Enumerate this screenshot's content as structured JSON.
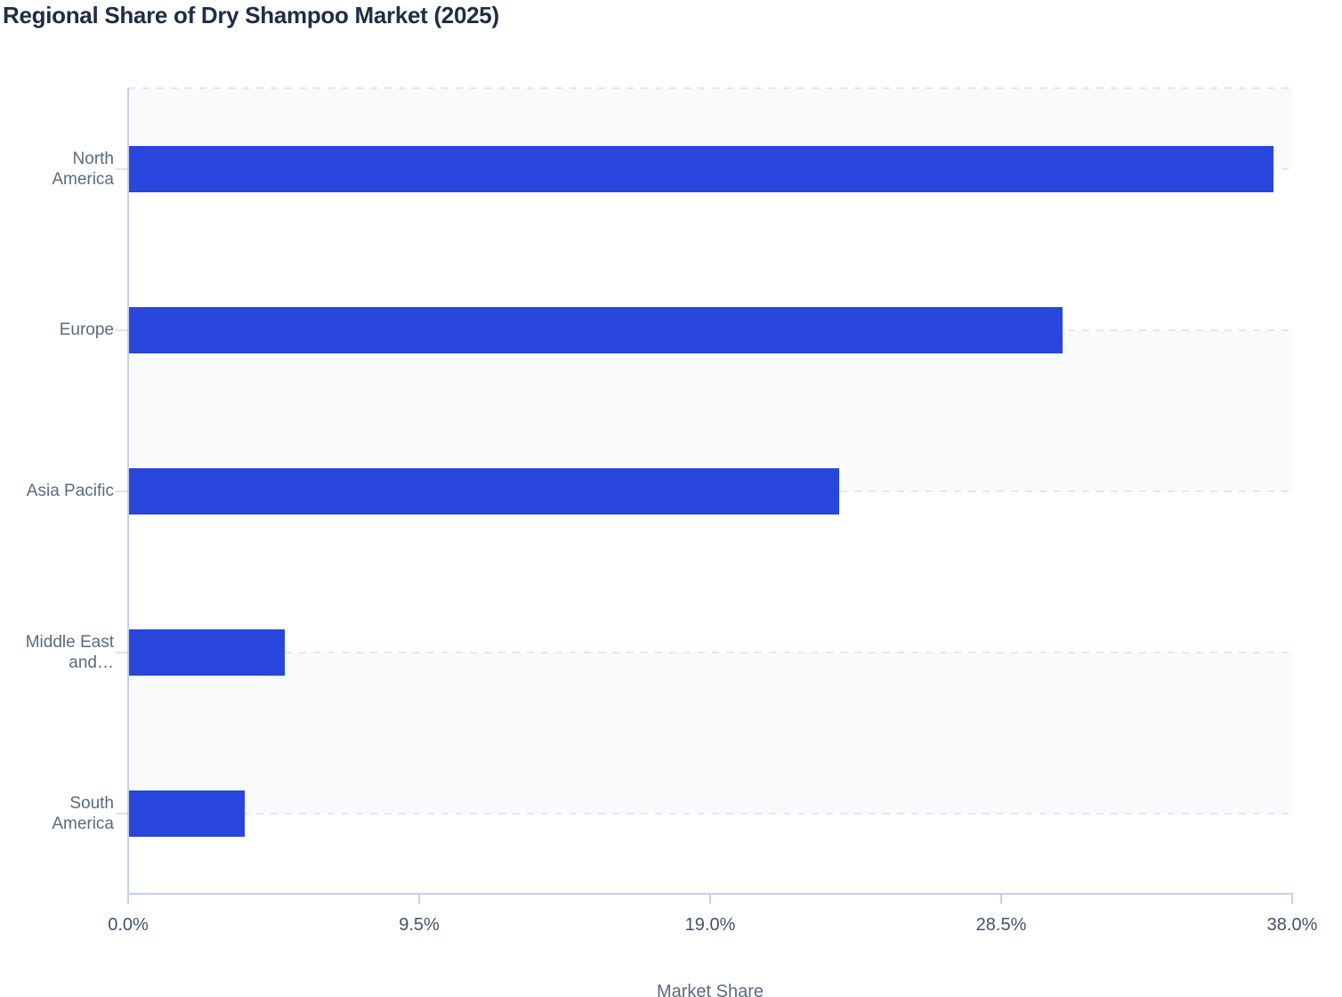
{
  "page": {
    "title": "Regional Share of Dry Shampoo Market (2025)"
  },
  "chart_data": {
    "type": "bar",
    "orientation": "horizontal",
    "title": "Regional Share of Dry Shampoo Market (2025)",
    "categories": [
      "North America",
      "Europe",
      "Asia Pacific",
      "Middle East and…",
      "South America"
    ],
    "category_label_lines": [
      [
        "North",
        "America"
      ],
      [
        "Europe"
      ],
      [
        "Asia Pacific"
      ],
      [
        "Middle East",
        "and…"
      ],
      [
        "South",
        "America"
      ]
    ],
    "values": [
      37.4,
      30.5,
      23.2,
      5.1,
      3.8
    ],
    "unit": "%",
    "xlabel": "Market Share",
    "ylabel": "",
    "xlim": [
      0,
      38
    ],
    "x_ticks": [
      0,
      9.5,
      19,
      28.5,
      38
    ],
    "x_tick_labels": [
      "0.0%",
      "9.5%",
      "19.0%",
      "28.5%",
      "38.0%"
    ],
    "grid": "horizontal dashed gridlines at category centers, alternating light row bands",
    "legend": "none",
    "colors": {
      "bar": "#2846db",
      "band": "#f8fafc",
      "grid": "#e3e7ee",
      "axis": "#c6cfe6",
      "y_tick": "#dde2ef",
      "title": "#1f2d45",
      "x_tick_label": "#42526a",
      "category_label": "#5a6a7e",
      "background": "#ffffff"
    }
  }
}
